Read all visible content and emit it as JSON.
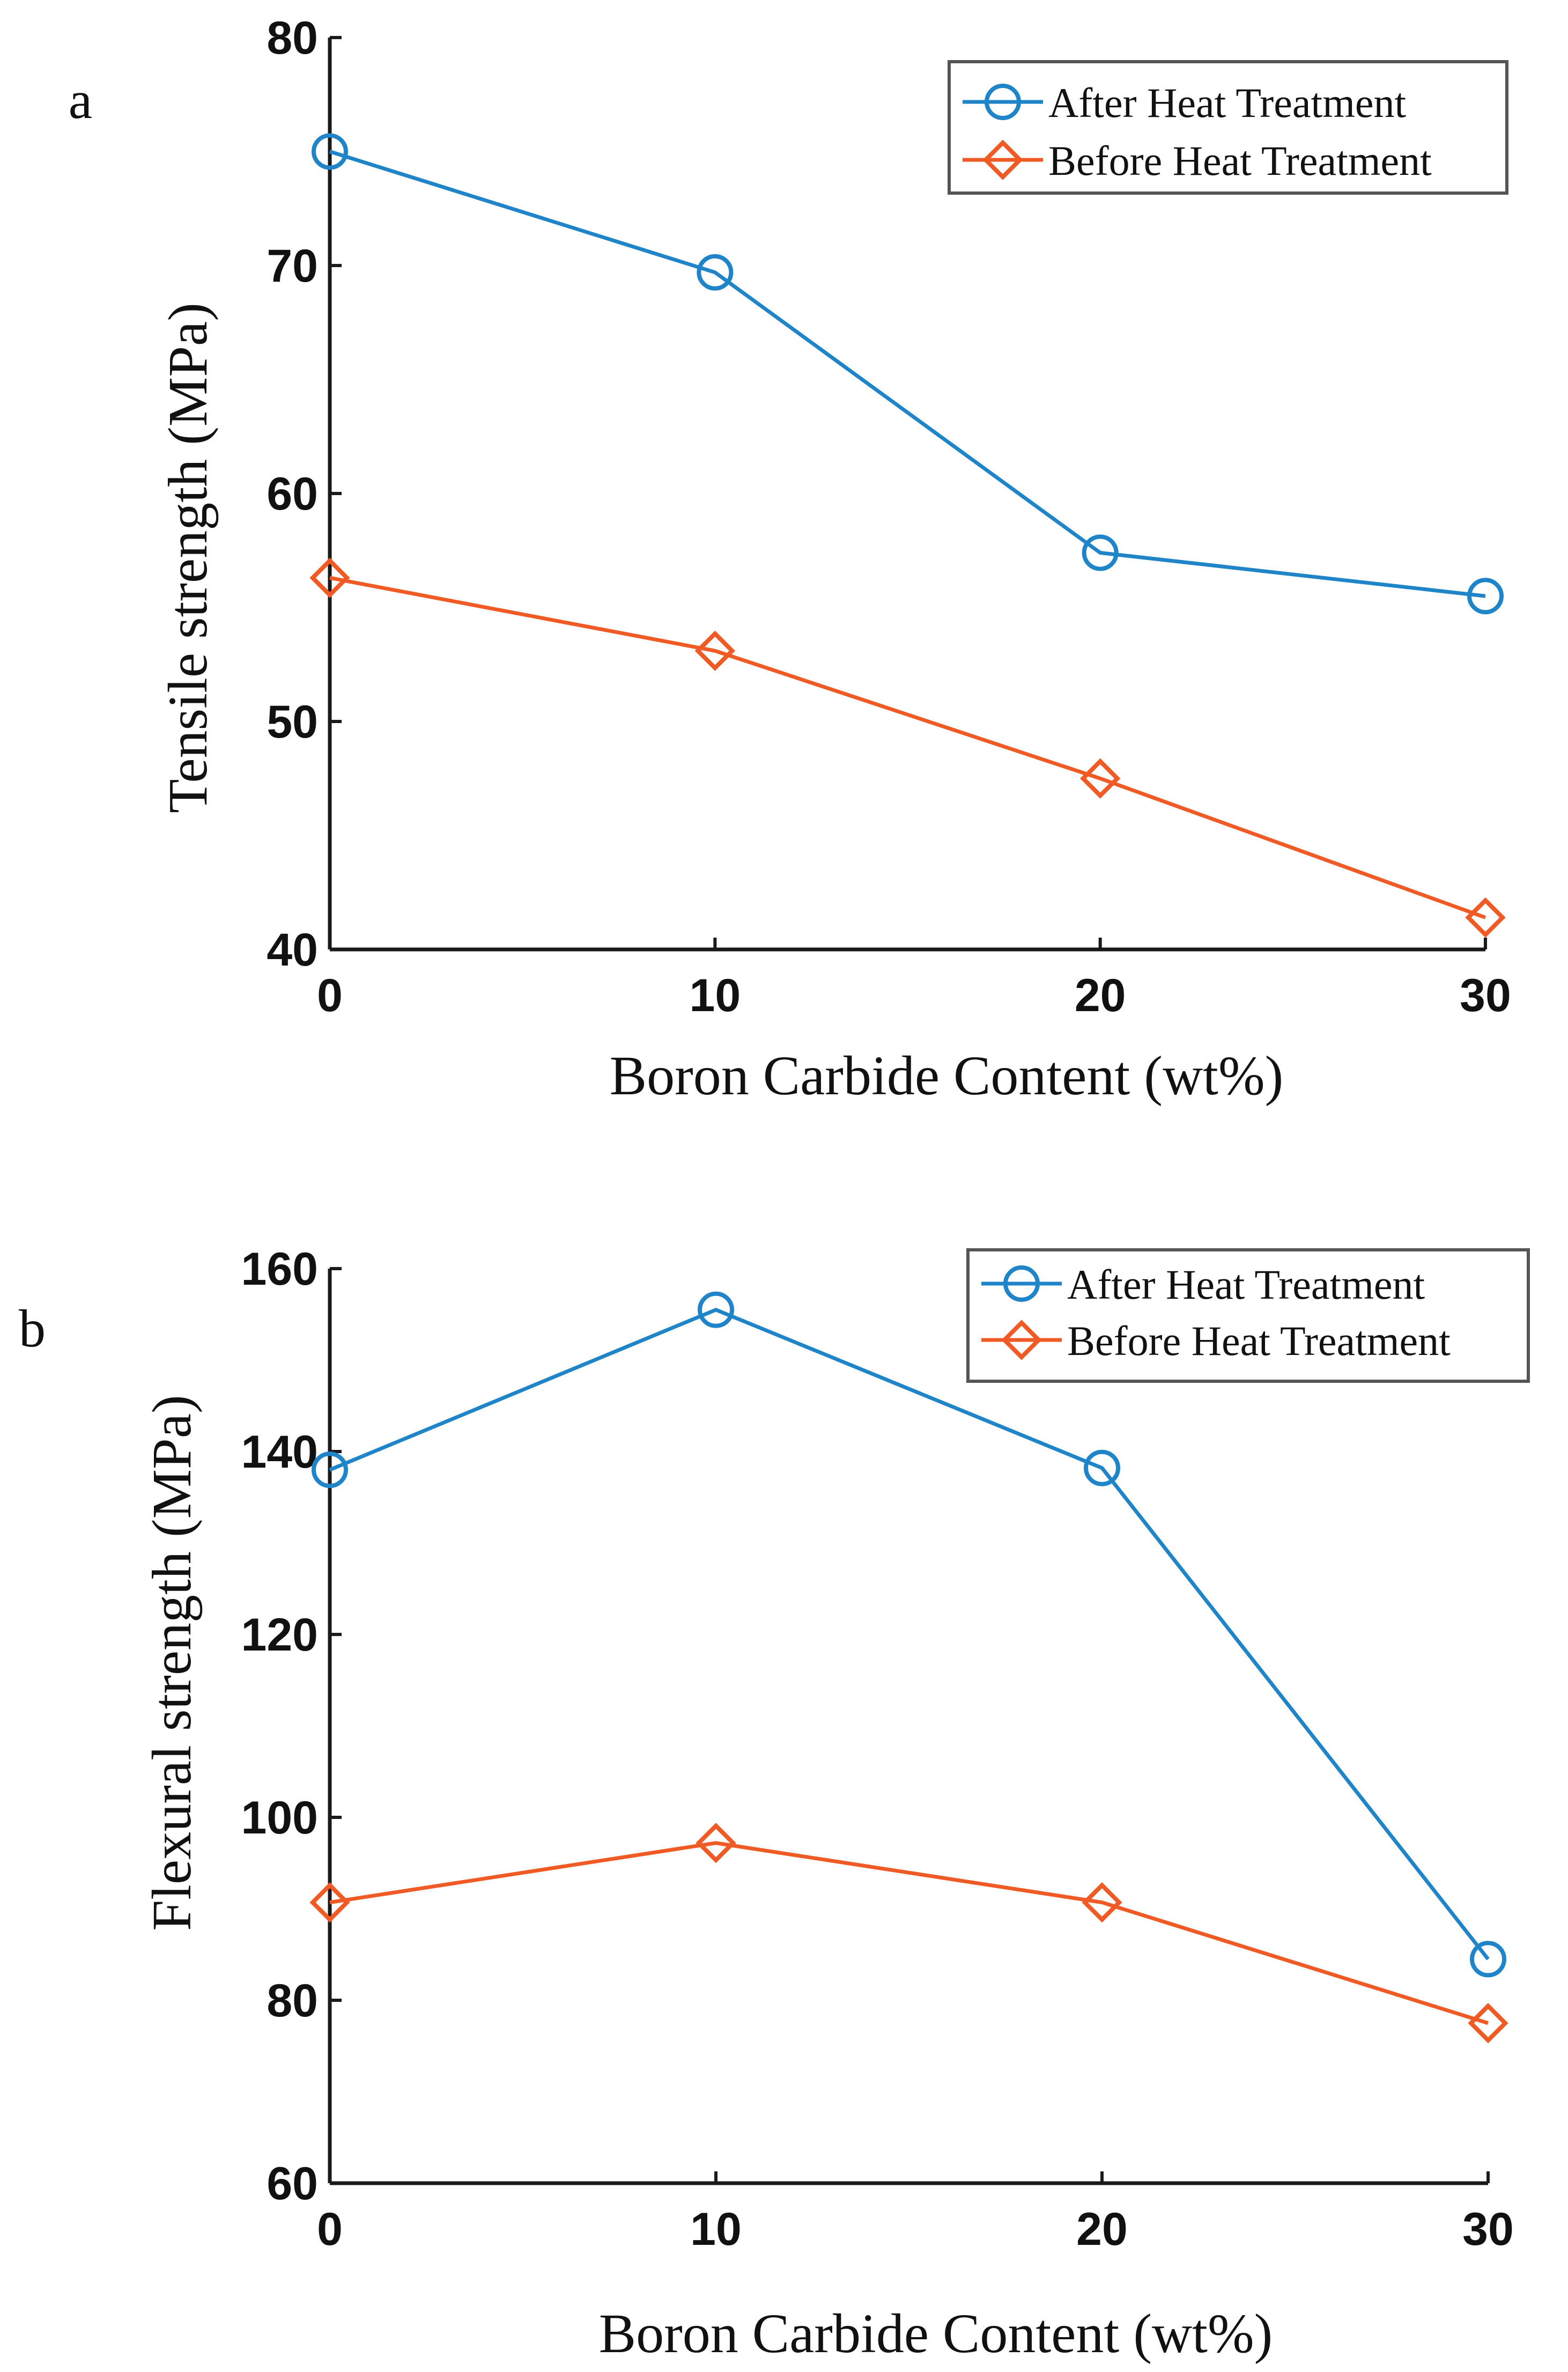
{
  "colors": {
    "after": "#1f85c8",
    "before": "#f05a24",
    "axis": "#1a1a1a",
    "text": "#111111"
  },
  "chart_data": [
    {
      "type": "line",
      "panel_label": "a",
      "xlabel": "Boron Carbide Content (wt%)",
      "ylabel": "Tensile strength (MPa)",
      "x": [
        0,
        10,
        20,
        30
      ],
      "xticks": [
        0,
        10,
        20,
        30
      ],
      "xlim": [
        0,
        30
      ],
      "yticks": [
        40,
        50,
        60,
        70,
        80
      ],
      "ylim": [
        40,
        80
      ],
      "grid": false,
      "legend_position": "top-right",
      "series": [
        {
          "name": "After Heat Treatment",
          "marker": "circle",
          "color_key": "after",
          "values": [
            75.0,
            69.7,
            57.4,
            55.5
          ]
        },
        {
          "name": "Before Heat Treatment",
          "marker": "diamond",
          "color_key": "before",
          "values": [
            56.3,
            53.1,
            47.5,
            41.4
          ]
        }
      ]
    },
    {
      "type": "line",
      "panel_label": "b",
      "xlabel": "Boron Carbide Content (wt%)",
      "ylabel": "Flexural strength (MPa)",
      "x": [
        0,
        10,
        20,
        30
      ],
      "xticks": [
        0,
        10,
        20,
        30
      ],
      "xlim": [
        0,
        30
      ],
      "yticks": [
        60,
        80,
        100,
        120,
        140,
        160
      ],
      "ylim": [
        60,
        160
      ],
      "grid": false,
      "legend_position": "top-right",
      "series": [
        {
          "name": "After Heat Treatment",
          "marker": "circle",
          "color_key": "after",
          "values": [
            138,
            155.5,
            138.2,
            84.5
          ]
        },
        {
          "name": "Before Heat Treatment",
          "marker": "diamond",
          "color_key": "before",
          "values": [
            90.7,
            97.2,
            90.7,
            77.5
          ]
        }
      ]
    }
  ]
}
